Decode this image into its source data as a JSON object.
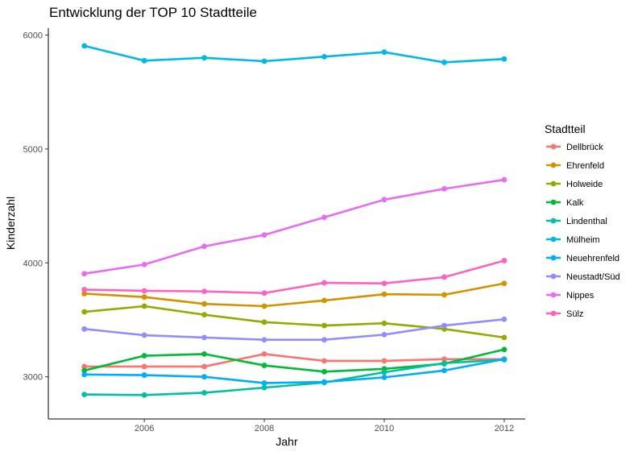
{
  "chart_data": {
    "type": "line",
    "title": "Entwicklung der TOP 10 Stadtteile",
    "xlabel": "Jahr",
    "ylabel": "Kinderzahl",
    "x": [
      2005,
      2006,
      2007,
      2008,
      2009,
      2010,
      2011,
      2012
    ],
    "xlim": [
      2004.4,
      2012.35
    ],
    "ylim": [
      2630,
      6060
    ],
    "xticks": [
      2006,
      2008,
      2010,
      2012
    ],
    "yticks": [
      3000,
      4000,
      5000,
      6000
    ],
    "grid": false,
    "legend": {
      "title": "Stadtteil",
      "position": "right"
    },
    "series": [
      {
        "name": "Dellbrück",
        "color": "#F8766D",
        "values": [
          3090,
          3090,
          3090,
          3200,
          3140,
          3140,
          3155,
          3155
        ]
      },
      {
        "name": "Ehrenfeld",
        "color": "#D39200",
        "values": [
          3730,
          3700,
          3640,
          3620,
          3670,
          3725,
          3720,
          3820
        ]
      },
      {
        "name": "Holweide",
        "color": "#93AA00",
        "values": [
          3570,
          3620,
          3545,
          3480,
          3450,
          3470,
          3420,
          3345
        ]
      },
      {
        "name": "Kalk",
        "color": "#00BA38",
        "values": [
          3055,
          3185,
          3200,
          3100,
          3045,
          3070,
          3115,
          3240
        ]
      },
      {
        "name": "Lindenthal",
        "color": "#00C19F",
        "values": [
          2845,
          2840,
          2860,
          2905,
          2950,
          3040,
          3120,
          3150
        ]
      },
      {
        "name": "Mülheim",
        "color": "#00B9E3",
        "values": [
          5905,
          5775,
          5800,
          5770,
          5810,
          5850,
          5760,
          5790
        ]
      },
      {
        "name": "Neuehrenfeld",
        "color": "#00ADFA",
        "values": [
          3020,
          3015,
          3000,
          2945,
          2955,
          2995,
          3055,
          3155
        ]
      },
      {
        "name": "Neustadt/Süd",
        "color": "#928DFF",
        "values": [
          3420,
          3365,
          3345,
          3325,
          3325,
          3370,
          3450,
          3505
        ]
      },
      {
        "name": "Nippes",
        "color": "#E76BF3",
        "values": [
          3905,
          3985,
          4145,
          4245,
          4400,
          4555,
          4650,
          4730
        ]
      },
      {
        "name": "Sülz",
        "color": "#FF62BC",
        "values": [
          3765,
          3755,
          3750,
          3735,
          3825,
          3820,
          3875,
          4020
        ]
      }
    ]
  }
}
